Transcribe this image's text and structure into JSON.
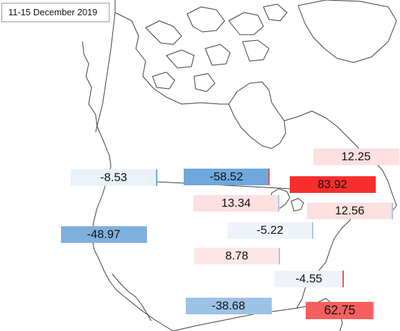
{
  "map": {
    "date_label": "11-15  December 2019",
    "regions": [
      {
        "value": "-8.53",
        "fill": "#eaf1f8",
        "edge": "#6fa8dc"
      },
      {
        "value": "-58.52",
        "fill": "#6fa8dc",
        "edge": "#e05555"
      },
      {
        "value": "83.92",
        "fill": "#f72e2e",
        "edge": "#f72e2e"
      },
      {
        "value": "12.25",
        "fill": "#fde0e0",
        "edge": "#fde0e0"
      },
      {
        "value": "13.34",
        "fill": "#fde0e0",
        "edge": "#a8c8e8"
      },
      {
        "value": "12.56",
        "fill": "#fde0e0",
        "edge": "#a8c8e8"
      },
      {
        "value": "-48.97",
        "fill": "#7fb0de",
        "edge": "#7fb0de"
      },
      {
        "value": "-5.22",
        "fill": "#eef4fa",
        "edge": "#a8c8e8"
      },
      {
        "value": "8.78",
        "fill": "#fde6e6",
        "edge": "#a8c8e8"
      },
      {
        "value": "-4.55",
        "fill": "#eef4fa",
        "edge": "#e05555"
      },
      {
        "value": "-38.68",
        "fill": "#9cc3e6",
        "edge": "#9cc3e6"
      },
      {
        "value": "62.75",
        "fill": "#f75f5f",
        "edge": "#a8c8e8"
      }
    ]
  }
}
